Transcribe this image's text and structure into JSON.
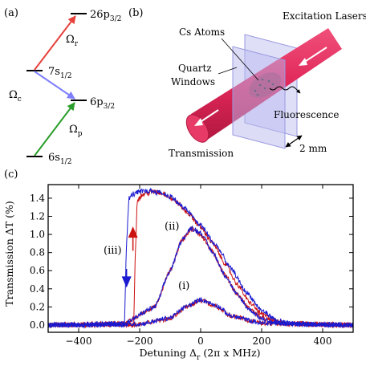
{
  "panel_a": {
    "panel_label": "(a)",
    "levels": [
      {
        "label_main": "26p",
        "label_sub": "3/2"
      },
      {
        "label_main": "7s",
        "label_sub": "1/2"
      },
      {
        "label_main": "6p",
        "label_sub": "3/2"
      },
      {
        "label_main": "6s",
        "label_sub": "1/2"
      }
    ],
    "couplings": [
      {
        "label_main": "Ω",
        "label_sub": "r",
        "color": "#e8413c"
      },
      {
        "label_main": "Ω",
        "label_sub": "c",
        "color": "#7f7fff"
      },
      {
        "label_main": "Ω",
        "label_sub": "p",
        "color": "#2a9d2a"
      }
    ]
  },
  "panel_b": {
    "panel_label": "(b)",
    "labels": {
      "cs_atoms": "Cs Atoms",
      "excitation": "Excitation Lasers",
      "quartz_line1": "Quartz",
      "quartz_line2": "Windows",
      "fluorescence": "Fluorescence",
      "transmission": "Transmission",
      "scale": "2 mm"
    },
    "colors": {
      "beam": "#e0265a",
      "window": "#b9b9f0"
    }
  },
  "chart_data": {
    "type": "line",
    "panel_label": "(c)",
    "xlabel_main": "Detuning Δ",
    "xlabel_sub": "r",
    "xlabel_tail": " (2π x MHz)",
    "ylabel": "Transmission ΔT (%)",
    "xlim": [
      -500,
      500
    ],
    "ylim": [
      -0.08,
      1.55
    ],
    "xticks": [
      -400,
      -200,
      0,
      200,
      400
    ],
    "xtick_labels": [
      "−400",
      "−200",
      "0",
      "200",
      "400"
    ],
    "yticks": [
      0.0,
      0.2,
      0.4,
      0.6,
      0.8,
      1.0,
      1.2,
      1.4
    ],
    "ytick_labels": [
      "0.0",
      "0.2",
      "0.4",
      "0.6",
      "0.8",
      "1.0",
      "1.2",
      "1.4"
    ],
    "annotations": [
      "(i)",
      "(ii)",
      "(iii)"
    ],
    "series": [
      {
        "color": "#1a1ad0",
        "curves": [
          {
            "x": [
              -500,
              -200,
              -100,
              -50,
              0,
              50,
              100,
              200,
              500
            ],
            "y": [
              0.0,
              0.01,
              0.08,
              0.2,
              0.28,
              0.22,
              0.1,
              0.02,
              0.0
            ]
          },
          {
            "x": [
              -500,
              -250,
              -150,
              -100,
              -60,
              -30,
              0,
              40,
              80,
              120,
              160,
              200,
              250,
              500
            ],
            "y": [
              0.0,
              0.02,
              0.2,
              0.6,
              0.95,
              1.07,
              1.02,
              0.8,
              0.55,
              0.33,
              0.17,
              0.07,
              0.02,
              0.0
            ]
          },
          {
            "x": [
              -500,
              -250,
              -243,
              -235,
              -220,
              -200,
              -180,
              -160,
              -140,
              -100,
              -50,
              0,
              50,
              100,
              150,
              200,
              250,
              300,
              500
            ],
            "y": [
              0.0,
              0.0,
              0.9,
              1.4,
              1.45,
              1.47,
              1.48,
              1.48,
              1.47,
              1.42,
              1.28,
              1.1,
              0.88,
              0.62,
              0.36,
              0.16,
              0.05,
              0.01,
              0.0
            ]
          }
        ]
      },
      {
        "color": "#cc1111",
        "curves": [
          {
            "x": [
              -500,
              -200,
              -100,
              -50,
              0,
              50,
              100,
              200,
              500
            ],
            "y": [
              0.0,
              0.01,
              0.07,
              0.19,
              0.27,
              0.21,
              0.1,
              0.02,
              0.0
            ]
          },
          {
            "x": [
              -500,
              -250,
              -150,
              -100,
              -60,
              -30,
              0,
              40,
              80,
              120,
              160,
              200,
              250,
              500
            ],
            "y": [
              0.0,
              0.02,
              0.2,
              0.6,
              0.95,
              1.06,
              1.0,
              0.8,
              0.55,
              0.34,
              0.18,
              0.08,
              0.02,
              0.0
            ]
          },
          {
            "x": [
              -500,
              -220,
              -214,
              -208,
              -190,
              -170,
              -150,
              -120,
              -80,
              -40,
              0,
              40,
              80,
              120,
              160,
              200,
              250,
              300,
              500
            ],
            "y": [
              0.0,
              0.0,
              0.8,
              1.38,
              1.44,
              1.46,
              1.47,
              1.45,
              1.36,
              1.23,
              1.08,
              0.9,
              0.68,
              0.45,
              0.25,
              0.12,
              0.04,
              0.01,
              0.0
            ]
          }
        ]
      }
    ],
    "arrows": [
      {
        "color": "#1a1ad0",
        "direction": "down",
        "x": -243,
        "y_from": 0.62,
        "y_to": 0.43
      },
      {
        "color": "#cc1111",
        "direction": "up",
        "x": -222,
        "y_from": 0.82,
        "y_to": 1.07
      }
    ]
  }
}
